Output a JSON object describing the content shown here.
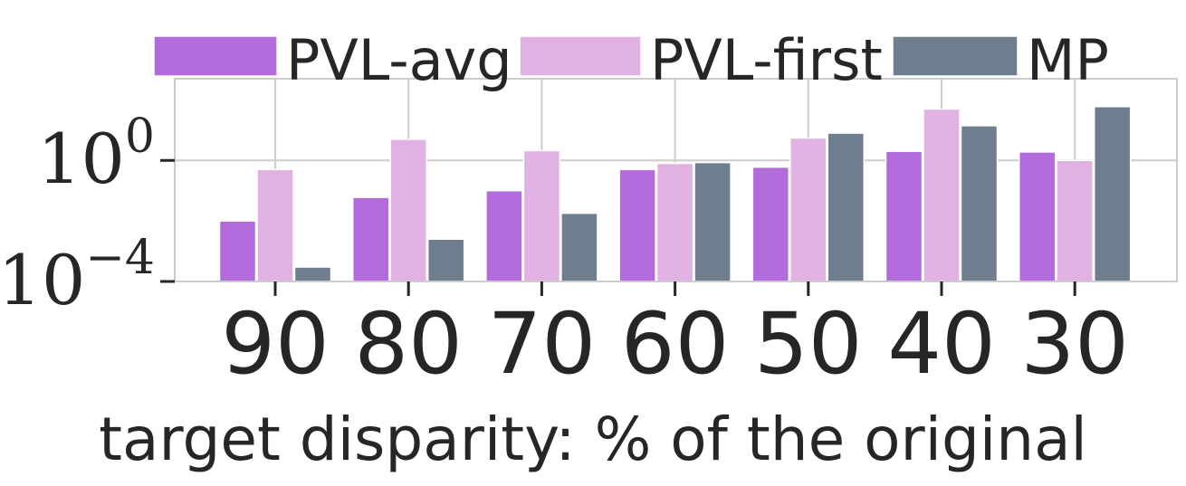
{
  "chart_data": {
    "type": "bar",
    "categories": [
      "90",
      "80",
      "70",
      "60",
      "50",
      "40",
      "30"
    ],
    "series": [
      {
        "name": "PVL-avg",
        "color": "#b36bdb",
        "values": [
          0.01,
          0.06,
          0.1,
          0.5,
          0.6,
          2.0,
          1.9
        ]
      },
      {
        "name": "PVL-first",
        "color": "#e2b1e3",
        "values": [
          0.5,
          5.0,
          2.1,
          0.8,
          5.5,
          50,
          1.0
        ]
      },
      {
        "name": "MP",
        "color": "#6e7e8e",
        "values": [
          0.0003,
          0.0025,
          0.018,
          0.85,
          8.0,
          14,
          60
        ]
      }
    ],
    "xlabel": "target disparity: % of the original",
    "ylabel": "",
    "yscale": "log",
    "ylim": [
      0.0001,
      500
    ],
    "yticks": [
      {
        "base": "10",
        "exp": "0",
        "value": 1
      },
      {
        "base": "10",
        "exp": "−4",
        "value": 0.0001
      }
    ],
    "grid": true,
    "legend": "top"
  }
}
